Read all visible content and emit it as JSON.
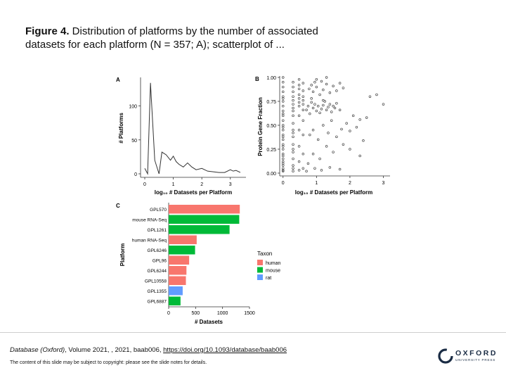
{
  "caption": {
    "bold": "Figure 4.",
    "text": " Distribution of platforms by the number of associated datasets for each platform (N = 357; A); scatterplot of ..."
  },
  "chart_data": [
    {
      "panel": "A",
      "type": "line",
      "xlabel": "log₁₀ # Datasets per Platform",
      "ylabel": "# Platforms",
      "xlim": [
        0,
        3.4
      ],
      "ylim": [
        0,
        140
      ],
      "xticks": [
        "0",
        "1",
        "2",
        "3"
      ],
      "yticks": [
        "0",
        "50",
        "100"
      ],
      "x": [
        0.0,
        0.1,
        0.2,
        0.35,
        0.5,
        0.6,
        0.75,
        0.9,
        1.0,
        1.1,
        1.2,
        1.35,
        1.5,
        1.65,
        1.8,
        2.0,
        2.2,
        2.4,
        2.6,
        2.8,
        3.0,
        3.1,
        3.2,
        3.35
      ],
      "y": [
        8,
        0,
        134,
        20,
        0,
        32,
        28,
        20,
        26,
        18,
        14,
        10,
        16,
        10,
        6,
        8,
        4,
        3,
        2,
        2,
        6,
        4,
        5,
        2
      ]
    },
    {
      "panel": "B",
      "type": "scatter",
      "xlabel": "log₁₀ # Datasets per Platform",
      "ylabel": "Protein Gene Fraction",
      "xlim": [
        -0.1,
        3.2
      ],
      "ylim": [
        0,
        1.0
      ],
      "xticks": [
        "0",
        "1",
        "2",
        "3"
      ],
      "yticks": [
        "0.00",
        "0.25",
        "0.50",
        "0.75",
        "1.00"
      ],
      "x": [
        0,
        0,
        0,
        0,
        0,
        0,
        0,
        0,
        0,
        0,
        0,
        0,
        0,
        0,
        0,
        0,
        0,
        0,
        0,
        0,
        0,
        0,
        0,
        0,
        0,
        0,
        0,
        0,
        0,
        0,
        0.3,
        0.3,
        0.3,
        0.3,
        0.3,
        0.3,
        0.3,
        0.3,
        0.3,
        0.3,
        0.3,
        0.3,
        0.3,
        0.3,
        0.3,
        0.3,
        0.3,
        0.3,
        0.3,
        0.3,
        0.48,
        0.48,
        0.48,
        0.48,
        0.48,
        0.48,
        0.48,
        0.48,
        0.48,
        0.48,
        0.48,
        0.48,
        0.6,
        0.6,
        0.6,
        0.6,
        0.6,
        0.6,
        0.6,
        0.6,
        0.6,
        0.6,
        0.7,
        0.75,
        0.8,
        0.85,
        0.9,
        0.95,
        1.0,
        1.05,
        1.1,
        1.15,
        1.2,
        1.25,
        1.3,
        1.35,
        1.4,
        1.45,
        1.5,
        1.55,
        1.6,
        1.7,
        0.78,
        0.85,
        0.9,
        0.95,
        1.0,
        1.1,
        1.15,
        1.2,
        1.3,
        1.4,
        1.5,
        1.6,
        1.7,
        1.8,
        0.8,
        0.9,
        1.05,
        1.2,
        1.35,
        1.45,
        1.6,
        1.75,
        1.9,
        2.0,
        2.1,
        2.2,
        2.3,
        2.4,
        2.5,
        2.6,
        2.8,
        3.0,
        0.75,
        0.9,
        1.1,
        1.3,
        1.5,
        1.8,
        2.0,
        2.3,
        0.7,
        0.95,
        1.15,
        1.4,
        1.7,
        0.85,
        1.0,
        1.2,
        1.3
      ],
      "y": [
        0.02,
        0.05,
        0.08,
        0.12,
        0.15,
        0.2,
        0.25,
        0.3,
        0.35,
        0.4,
        0.45,
        0.5,
        0.55,
        0.6,
        0.65,
        0.7,
        0.75,
        0.8,
        0.85,
        0.9,
        0.95,
        1.0,
        0.03,
        0.1,
        0.18,
        0.28,
        0.38,
        0.48,
        0.62,
        0.78,
        0.02,
        0.08,
        0.15,
        0.22,
        0.3,
        0.38,
        0.45,
        0.52,
        0.6,
        0.68,
        0.72,
        0.76,
        0.8,
        0.85,
        0.9,
        0.95,
        0.05,
        0.25,
        0.42,
        0.65,
        0.03,
        0.12,
        0.28,
        0.45,
        0.6,
        0.7,
        0.74,
        0.78,
        0.82,
        0.88,
        0.92,
        0.98,
        0.05,
        0.2,
        0.4,
        0.55,
        0.66,
        0.72,
        0.76,
        0.8,
        0.86,
        0.94,
        0.66,
        0.7,
        0.62,
        0.74,
        0.68,
        0.72,
        0.65,
        0.7,
        0.63,
        0.67,
        0.71,
        0.75,
        0.66,
        0.69,
        0.72,
        0.64,
        0.7,
        0.68,
        0.73,
        0.66,
        0.88,
        0.92,
        0.85,
        0.95,
        0.9,
        0.82,
        0.96,
        0.87,
        0.93,
        0.84,
        0.91,
        0.86,
        0.94,
        0.89,
        0.4,
        0.45,
        0.35,
        0.5,
        0.42,
        0.55,
        0.38,
        0.46,
        0.52,
        0.44,
        0.6,
        0.48,
        0.56,
        0.34,
        0.58,
        0.8,
        0.82,
        0.72,
        0.1,
        0.2,
        0.15,
        0.28,
        0.22,
        0.3,
        0.25,
        0.18,
        0.02,
        0.05,
        0.03,
        0.06,
        0.04,
        0.78,
        0.98,
        0.76,
        1.0
      ]
    },
    {
      "panel": "C",
      "type": "bar",
      "orientation": "horizontal",
      "xlabel": "# Datasets",
      "ylabel": "Platform",
      "xlim": [
        0,
        1500
      ],
      "xticks": [
        "0",
        "500",
        "1000",
        "1500"
      ],
      "categories": [
        "GPL570",
        "mouse RNA-Seq",
        "GPL1261",
        "human RNA-Seq",
        "GPL6246",
        "GPL96",
        "GPL6244",
        "GPL10558",
        "GPL1355",
        "GPL6887"
      ],
      "values": [
        1320,
        1310,
        1130,
        520,
        490,
        380,
        330,
        320,
        260,
        220
      ],
      "taxon": [
        "human",
        "mouse",
        "mouse",
        "human",
        "mouse",
        "human",
        "human",
        "human",
        "rat",
        "mouse"
      ],
      "legend": {
        "title": "Taxon",
        "entries": [
          "human",
          "mouse",
          "rat"
        ],
        "colors": [
          "#f8766d",
          "#00ba38",
          "#619cff"
        ]
      }
    }
  ],
  "footer": {
    "citation_journal": "Database (Oxford)",
    "citation_rest": ", Volume 2021, , 2021, baab006, ",
    "citation_link": "https://doi.org/10.1093/database/baab006",
    "copyright": "The content of this slide may be subject to copyright: please see the slide notes for details.",
    "logo_line1": "OXFORD",
    "logo_line2": "UNIVERSITY PRESS"
  }
}
